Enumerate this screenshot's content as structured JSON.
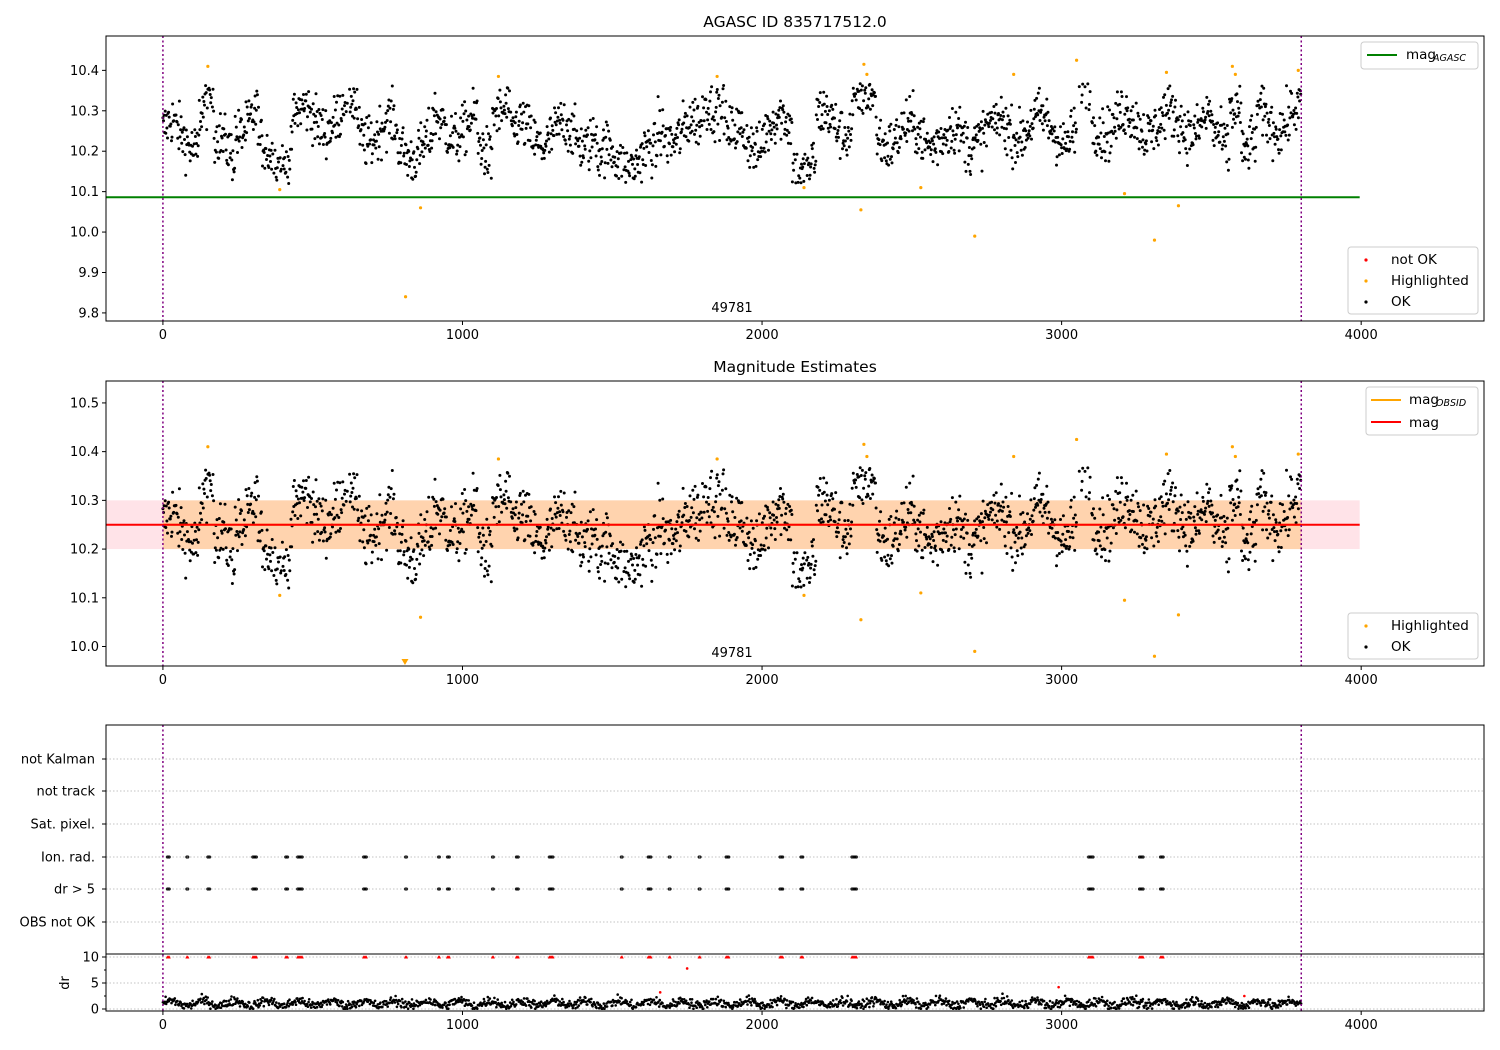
{
  "colors": {
    "ok": "#000000",
    "highlighted": "#ffa500",
    "not_ok": "#ff0000",
    "agasc_line": "#008000",
    "mag_line": "#ff0000",
    "obsid_line": "#ffa500",
    "band": "#ffc0cb",
    "band_overlap": "#ffd7b5",
    "obs_boundary": "#800080"
  },
  "chart_data": [
    {
      "type": "scatter",
      "title": "AGASC ID 835717512.0",
      "xlim": [
        -190,
        4410
      ],
      "ylim": [
        9.78,
        10.485
      ],
      "xticks": [
        0,
        1000,
        2000,
        3000,
        4000
      ],
      "yticks": [
        9.8,
        9.9,
        10.0,
        10.1,
        10.2,
        10.3,
        10.4
      ],
      "obsid_label": "49781",
      "obs_boundaries": [
        0,
        3800
      ],
      "mag_agasc": 10.086,
      "series_segments": [
        {
          "x0": 0,
          "x1": 40,
          "mean": 10.25
        },
        {
          "x0": 40,
          "x1": 120,
          "mean": 10.23
        },
        {
          "x0": 120,
          "x1": 170,
          "mean": 10.32
        },
        {
          "x0": 170,
          "x1": 240,
          "mean": 10.21
        },
        {
          "x0": 240,
          "x1": 320,
          "mean": 10.27
        },
        {
          "x0": 320,
          "x1": 430,
          "mean": 10.19
        },
        {
          "x0": 430,
          "x1": 600,
          "mean": 10.28
        },
        {
          "x0": 600,
          "x1": 650,
          "mean": 10.31
        },
        {
          "x0": 650,
          "x1": 780,
          "mean": 10.25
        },
        {
          "x0": 780,
          "x1": 900,
          "mean": 10.21
        },
        {
          "x0": 900,
          "x1": 1050,
          "mean": 10.26
        },
        {
          "x0": 1050,
          "x1": 1100,
          "mean": 10.19
        },
        {
          "x0": 1100,
          "x1": 1160,
          "mean": 10.32
        },
        {
          "x0": 1160,
          "x1": 1450,
          "mean": 10.24
        },
        {
          "x0": 1450,
          "x1": 1650,
          "mean": 10.18
        },
        {
          "x0": 1650,
          "x1": 1800,
          "mean": 10.25
        },
        {
          "x0": 1800,
          "x1": 1880,
          "mean": 10.33
        },
        {
          "x0": 1880,
          "x1": 2000,
          "mean": 10.23
        },
        {
          "x0": 2000,
          "x1": 2100,
          "mean": 10.26
        },
        {
          "x0": 2100,
          "x1": 2180,
          "mean": 10.17
        },
        {
          "x0": 2180,
          "x1": 2300,
          "mean": 10.27
        },
        {
          "x0": 2300,
          "x1": 2380,
          "mean": 10.32
        },
        {
          "x0": 2380,
          "x1": 2600,
          "mean": 10.24
        },
        {
          "x0": 2600,
          "x1": 2700,
          "mean": 10.23
        },
        {
          "x0": 2700,
          "x1": 2800,
          "mean": 10.25
        },
        {
          "x0": 2800,
          "x1": 3000,
          "mean": 10.26
        },
        {
          "x0": 3000,
          "x1": 3050,
          "mean": 10.24
        },
        {
          "x0": 3050,
          "x1": 3100,
          "mean": 10.35
        },
        {
          "x0": 3100,
          "x1": 3500,
          "mean": 10.27
        },
        {
          "x0": 3500,
          "x1": 3560,
          "mean": 10.22
        },
        {
          "x0": 3560,
          "x1": 3600,
          "mean": 10.33
        },
        {
          "x0": 3600,
          "x1": 3650,
          "mean": 10.2
        },
        {
          "x0": 3650,
          "x1": 3800,
          "mean": 10.28
        }
      ],
      "highlighted": [
        [
          150,
          10.41
        ],
        [
          390,
          10.105
        ],
        [
          860,
          10.06
        ],
        [
          810,
          9.84
        ],
        [
          1120,
          10.385
        ],
        [
          1850,
          10.385
        ],
        [
          2140,
          10.11
        ],
        [
          2330,
          10.055
        ],
        [
          2340,
          10.415
        ],
        [
          2350,
          10.39
        ],
        [
          2530,
          10.11
        ],
        [
          2710,
          9.99
        ],
        [
          2840,
          10.39
        ],
        [
          3050,
          10.425
        ],
        [
          3210,
          10.095
        ],
        [
          3310,
          9.98
        ],
        [
          3350,
          10.395
        ],
        [
          3390,
          10.065
        ],
        [
          3570,
          10.41
        ],
        [
          3580,
          10.39
        ],
        [
          3790,
          10.4
        ]
      ],
      "legend_lines": [
        {
          "label": "mag",
          "sub": "AGASC"
        }
      ],
      "legend_points": [
        "not OK",
        "Highlighted",
        "OK"
      ]
    },
    {
      "type": "scatter",
      "title": "Magnitude Estimates",
      "xlim": [
        -190,
        4410
      ],
      "ylim": [
        9.96,
        10.545
      ],
      "xticks": [
        0,
        1000,
        2000,
        3000,
        4000
      ],
      "yticks": [
        10.0,
        10.1,
        10.2,
        10.3,
        10.4,
        10.5
      ],
      "obsid_label": "49781",
      "obs_boundaries": [
        0,
        3800
      ],
      "mag": 10.25,
      "mag_band": [
        10.2,
        10.3
      ],
      "mag_obsid": 10.25,
      "obsid_band": [
        10.2,
        10.3
      ],
      "highlighted": [
        [
          150,
          10.41
        ],
        [
          390,
          10.105
        ],
        [
          860,
          10.06
        ],
        [
          1120,
          10.385
        ],
        [
          1850,
          10.385
        ],
        [
          2140,
          10.105
        ],
        [
          2330,
          10.055
        ],
        [
          2340,
          10.415
        ],
        [
          2350,
          10.39
        ],
        [
          2530,
          10.11
        ],
        [
          2710,
          9.99
        ],
        [
          2840,
          10.39
        ],
        [
          3050,
          10.425
        ],
        [
          3210,
          10.095
        ],
        [
          3310,
          9.98
        ],
        [
          3350,
          10.395
        ],
        [
          3390,
          10.065
        ],
        [
          3570,
          10.41
        ],
        [
          3580,
          10.39
        ],
        [
          3790,
          10.395
        ]
      ],
      "clipped": [
        808
      ],
      "legend_lines": [
        {
          "label": "mag",
          "sub": "OBSID"
        },
        {
          "label": "mag",
          "sub": ""
        }
      ],
      "legend_points": [
        "Highlighted",
        "OK"
      ]
    },
    {
      "type": "scatter",
      "title": "",
      "xlim": [
        -190,
        4410
      ],
      "xticks": [
        0,
        1000,
        2000,
        3000,
        4000
      ],
      "obs_boundaries": [
        0,
        3800
      ],
      "flag_rows": [
        "not Kalman",
        "not track",
        "Sat. pixel.",
        "Ion. rad.",
        "dr > 5",
        "OBS not OK"
      ],
      "flag_events": [
        [
          15,
          8
        ],
        [
          80,
          3
        ],
        [
          150,
          6
        ],
        [
          300,
          12
        ],
        [
          410,
          8
        ],
        [
          450,
          15
        ],
        [
          670,
          10
        ],
        [
          810,
          3
        ],
        [
          920,
          5
        ],
        [
          950,
          6
        ],
        [
          1100,
          3
        ],
        [
          1180,
          8
        ],
        [
          1290,
          12
        ],
        [
          1530,
          3
        ],
        [
          1620,
          10
        ],
        [
          1690,
          3
        ],
        [
          1790,
          3
        ],
        [
          1880,
          10
        ],
        [
          2060,
          10
        ],
        [
          2130,
          8
        ],
        [
          2300,
          15
        ],
        [
          3090,
          15
        ],
        [
          3260,
          12
        ],
        [
          3330,
          10
        ]
      ],
      "dr_ylabel": "dr",
      "dr_yticks": [
        0,
        5,
        10
      ],
      "dr_outliers": [
        [
          1750,
          7.8
        ],
        [
          2990,
          4.2
        ],
        [
          3610,
          2.5
        ],
        [
          1660,
          3.2
        ]
      ]
    }
  ]
}
